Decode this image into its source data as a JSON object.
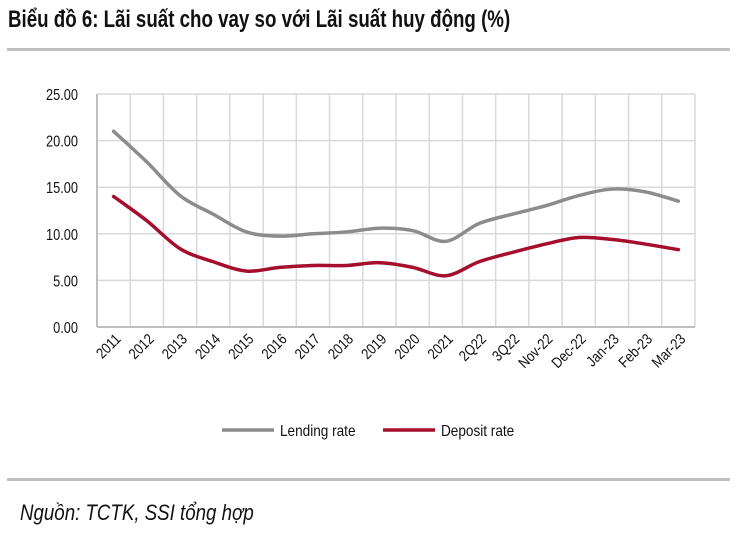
{
  "title": "Biểu đồ 6: Lãi suất cho vay so với Lãi suất huy động (%)",
  "source": "Nguồn: TCTK, SSI tổng hợp",
  "chart_data": {
    "type": "line",
    "categories": [
      "2011",
      "2012",
      "2013",
      "2014",
      "2015",
      "2016",
      "2017",
      "2018",
      "2019",
      "2020",
      "2021",
      "2Q22",
      "3Q22",
      "Nov-22",
      "Dec-22",
      "Jan-23",
      "Feb-23",
      "Mar-23"
    ],
    "ylim": [
      0,
      25
    ],
    "yticks": [
      "0.00",
      "5.00",
      "10.00",
      "15.00",
      "20.00",
      "25.00"
    ],
    "grid": true,
    "legend": "bottom",
    "series": [
      {
        "name": "Lending rate",
        "color": "#8c8c8c",
        "values": [
          21.0,
          17.7,
          14.1,
          12.1,
          10.2,
          9.75,
          10.0,
          10.2,
          10.6,
          10.35,
          9.2,
          11.1,
          12.1,
          13.0,
          14.1,
          14.8,
          14.5,
          13.5
        ]
      },
      {
        "name": "Deposit rate",
        "color": "#a50f2d",
        "values": [
          14.0,
          11.4,
          8.4,
          7.0,
          6.0,
          6.4,
          6.6,
          6.6,
          6.9,
          6.4,
          5.5,
          7.0,
          8.0,
          8.9,
          9.6,
          9.4,
          8.9,
          8.3
        ]
      }
    ]
  }
}
